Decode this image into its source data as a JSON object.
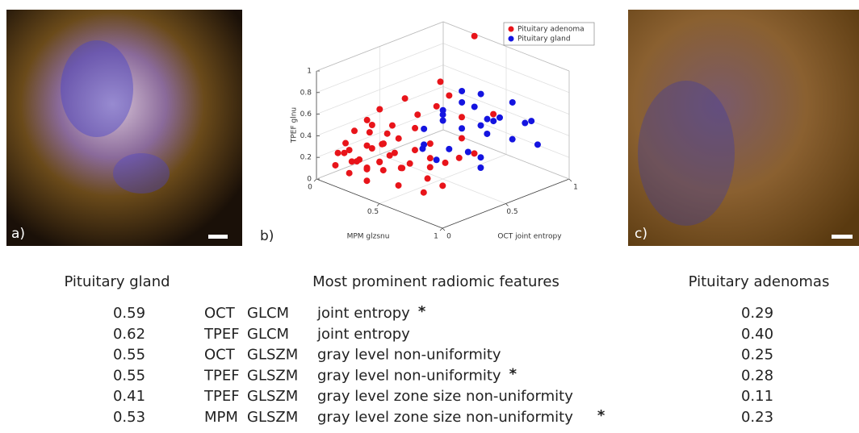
{
  "panels": {
    "a": "a)",
    "b": "b)",
    "c": "c)"
  },
  "chart_data": {
    "type": "scatter3d",
    "xlabel": "MPM glzsnu",
    "ylabel": "OCT joint entropy",
    "zlabel": "TPEF glnu",
    "xlim": [
      0,
      1
    ],
    "ylim": [
      0,
      1
    ],
    "zlim": [
      0,
      1
    ],
    "xticks": [
      0,
      0.5,
      1
    ],
    "yticks": [
      0,
      0.5,
      1
    ],
    "zticks": [
      0,
      0.2,
      0.4,
      0.6,
      0.8,
      1
    ],
    "grid": true,
    "legend": "top-right",
    "series": [
      {
        "name": "Pituitary adenoma",
        "color": "#e8141a",
        "x": [
          0.1,
          0.12,
          0.15,
          0.18,
          0.2,
          0.22,
          0.25,
          0.28,
          0.3,
          0.32,
          0.35,
          0.38,
          0.4,
          0.42,
          0.45,
          0.48,
          0.5,
          0.52,
          0.55,
          0.58,
          0.6,
          0.62,
          0.65,
          0.68,
          0.7,
          0.15,
          0.2,
          0.25,
          0.3,
          0.35,
          0.1,
          0.08,
          0.12,
          0.18,
          0.22,
          0.28,
          0.33,
          0.4,
          0.45,
          0.5,
          0.38,
          0.55,
          0.6,
          0.42,
          0.48,
          0.26,
          0.32,
          0.36,
          0.44,
          0.16,
          0.6,
          0.7,
          0.75
        ],
        "y": [
          0.05,
          0.1,
          0.02,
          0.08,
          0.12,
          0.04,
          0.15,
          0.06,
          0.1,
          0.18,
          0.05,
          0.2,
          0.12,
          0.25,
          0.08,
          0.3,
          0.15,
          0.22,
          0.35,
          0.1,
          0.28,
          0.4,
          0.2,
          0.45,
          0.3,
          0.25,
          0.3,
          0.35,
          0.4,
          0.45,
          0.2,
          0.15,
          0.3,
          0.35,
          0.22,
          0.28,
          0.32,
          0.38,
          0.5,
          0.55,
          0.6,
          0.6,
          0.55,
          0.48,
          0.42,
          0.18,
          0.08,
          0.14,
          0.18,
          0.12,
          0.65,
          0.7,
          0.5
        ],
        "z": [
          0.15,
          0.25,
          0.3,
          0.1,
          0.2,
          0.35,
          0.15,
          0.28,
          0.4,
          0.22,
          0.12,
          0.3,
          0.45,
          0.18,
          0.25,
          0.35,
          0.1,
          0.28,
          0.2,
          0.32,
          0.15,
          0.25,
          0.08,
          0.3,
          0.12,
          0.5,
          0.6,
          0.45,
          0.7,
          0.55,
          0.4,
          0.3,
          0.35,
          0.25,
          0.5,
          0.42,
          0.38,
          0.48,
          0.65,
          0.75,
          0.8,
          0.55,
          0.4,
          0.3,
          0.22,
          0.32,
          0.2,
          0.26,
          0.36,
          0.18,
          1.3,
          0.6,
          0.35
        ]
      },
      {
        "name": "Pituitary gland",
        "color": "#1414e0",
        "x": [
          0.4,
          0.45,
          0.5,
          0.55,
          0.6,
          0.65,
          0.7,
          0.75,
          0.5,
          0.55,
          0.6,
          0.45,
          0.4,
          0.35,
          0.65,
          0.7,
          0.3,
          0.5,
          0.55,
          0.6,
          0.45,
          0.7,
          0.8,
          0.35,
          0.6,
          0.42
        ],
        "y": [
          0.6,
          0.55,
          0.65,
          0.7,
          0.75,
          0.8,
          0.85,
          0.9,
          0.8,
          0.5,
          0.6,
          0.7,
          0.75,
          0.65,
          0.65,
          0.6,
          0.55,
          0.45,
          0.85,
          0.95,
          0.9,
          1.0,
          0.95,
          0.5,
          0.7,
          0.42
        ],
        "z": [
          0.45,
          0.55,
          0.4,
          0.6,
          0.35,
          0.5,
          0.3,
          0.45,
          0.65,
          0.3,
          0.25,
          0.7,
          0.55,
          0.5,
          0.2,
          0.15,
          0.35,
          0.2,
          0.4,
          0.55,
          0.35,
          0.4,
          0.25,
          0.25,
          0.45,
          0.28
        ]
      }
    ]
  },
  "table": {
    "headers": [
      "Pituitary gland",
      "Most prominent radiomic features",
      "Pituitary adenomas"
    ],
    "rows": [
      {
        "gland": "0.59",
        "modality": "OCT",
        "matrix": "GLCM",
        "feature": "joint entropy",
        "mark": "*",
        "adenoma": "0.29"
      },
      {
        "gland": "0.62",
        "modality": "TPEF",
        "matrix": "GLCM",
        "feature": "joint entropy",
        "adenoma": "0.40"
      },
      {
        "gland": "0.55",
        "modality": "OCT",
        "matrix": "GLSZM",
        "feature": "gray level non-uniformity",
        "adenoma": "0.25"
      },
      {
        "gland": "0.55",
        "modality": "TPEF",
        "matrix": "GLSZM",
        "feature": "gray level non-uniformity",
        "mark": "*",
        "adenoma": "0.28"
      },
      {
        "gland": "0.41",
        "modality": "TPEF",
        "matrix": "GLSZM",
        "feature": "gray level zone size non-uniformity",
        "adenoma": "0.11"
      },
      {
        "gland": "0.53",
        "modality": "MPM",
        "matrix": "GLSZM",
        "feature": "gray level zone size non-uniformity",
        "mark": "*",
        "adenoma": "0.23"
      }
    ]
  }
}
